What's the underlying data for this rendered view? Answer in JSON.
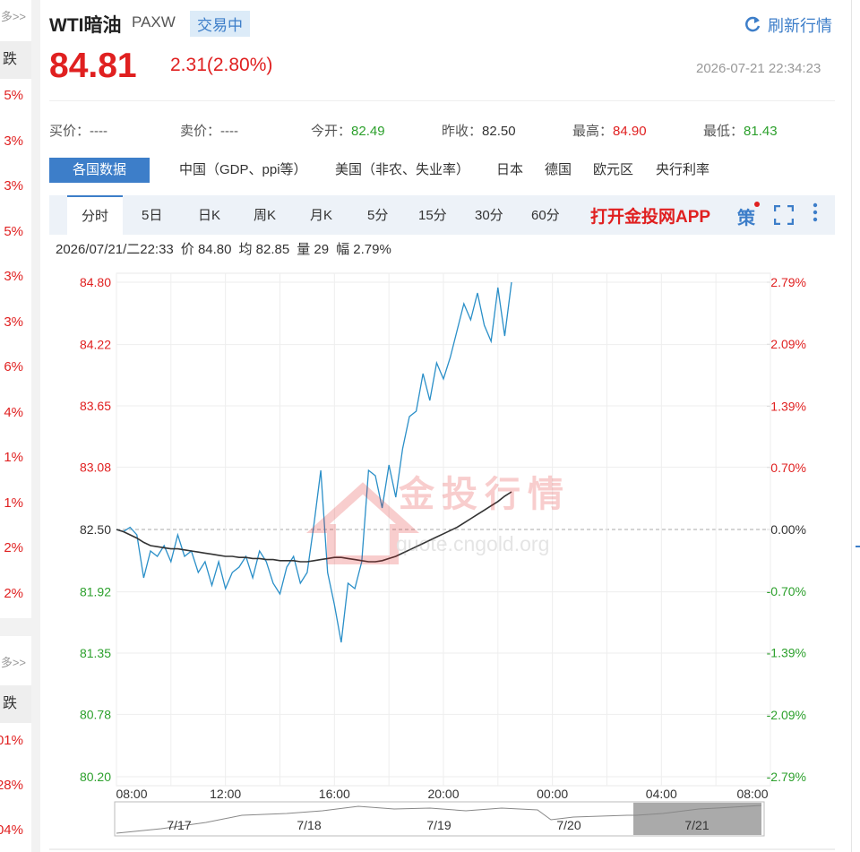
{
  "sidebar": {
    "top": {
      "more": "多>>",
      "header": "跌",
      "items": [
        "5%",
        "3%",
        "3%",
        "5%",
        "3%",
        "3%",
        "6%",
        "4%",
        "1%",
        "1%",
        "2%",
        "2%"
      ]
    },
    "bottom": {
      "more": "多>>",
      "header": "跌",
      "items": [
        "01%",
        "28%",
        "04%"
      ]
    }
  },
  "header": {
    "title": "WTI暗油",
    "code": "PAXW",
    "status": "交易中",
    "refresh": "刷新行情",
    "price": "84.81",
    "change": "2.31(2.80%)",
    "time": "2026-07-21 22:34:23"
  },
  "quotes": [
    {
      "label": "买价：",
      "value": "----",
      "color": "#555555"
    },
    {
      "label": "卖价：",
      "value": "----",
      "color": "#555555"
    },
    {
      "label": "今开：",
      "value": "82.49",
      "color": "#2ca02c"
    },
    {
      "label": "昨收：",
      "value": "82.50",
      "color": "#333333"
    },
    {
      "label": "最高：",
      "value": "84.90",
      "color": "#e02020"
    },
    {
      "label": "最低：",
      "value": "81.43",
      "color": "#2ca02c"
    }
  ],
  "tabs": [
    "各国数据",
    "中国（GDP、ppi等）",
    "美国（非农、失业率）",
    "日本",
    "德国",
    "欧元区",
    "央行利率"
  ],
  "periods": [
    "分时",
    "5日",
    "日K",
    "周K",
    "月K",
    "5分",
    "15分",
    "30分",
    "60分"
  ],
  "promo": "打开金投网APP",
  "strategy": "策",
  "info": [
    "2026/07/21/二22:33",
    "价 84.80",
    "均 82.85",
    "量 29",
    "幅 2.79%"
  ],
  "watermark": {
    "brand": "金投行情",
    "site": "quote.cngold.org"
  },
  "navigator": [
    "7/17",
    "7/18",
    "7/19",
    "7/20",
    "7/21"
  ],
  "chart_data": {
    "type": "line",
    "x": [
      8,
      8.25,
      8.5,
      8.75,
      9,
      9.25,
      9.5,
      9.75,
      10,
      10.25,
      10.5,
      10.75,
      11,
      11.25,
      11.5,
      11.75,
      12,
      12.25,
      12.5,
      12.75,
      13,
      13.25,
      13.5,
      13.75,
      14,
      14.25,
      14.5,
      14.75,
      15,
      15.25,
      15.5,
      15.75,
      16,
      16.25,
      16.5,
      16.75,
      17,
      17.25,
      17.5,
      17.75,
      18,
      18.25,
      18.5,
      18.75,
      19,
      19.25,
      19.5,
      19.75,
      20,
      20.25,
      20.5,
      20.75,
      21,
      21.25,
      21.5,
      21.75,
      22,
      22.25,
      22.5
    ],
    "series": [
      {
        "name": "价",
        "color": "#2a8fc8",
        "values": [
          82.5,
          82.48,
          82.52,
          82.45,
          82.05,
          82.3,
          82.25,
          82.35,
          82.2,
          82.45,
          82.25,
          82.3,
          82.1,
          82.2,
          81.98,
          82.2,
          81.95,
          82.1,
          82.15,
          82.25,
          82.05,
          82.3,
          82.2,
          82.0,
          81.9,
          82.15,
          82.25,
          82.0,
          82.1,
          82.55,
          83.05,
          82.1,
          81.8,
          81.45,
          82.0,
          81.95,
          82.2,
          83.05,
          83.0,
          82.7,
          83.1,
          82.8,
          83.25,
          83.55,
          83.6,
          83.95,
          83.7,
          84.05,
          83.9,
          84.1,
          84.35,
          84.6,
          84.45,
          84.7,
          84.4,
          84.25,
          84.75,
          84.3,
          84.8
        ]
      },
      {
        "name": "均",
        "color": "#333333",
        "values": [
          82.5,
          82.48,
          82.45,
          82.42,
          82.38,
          82.35,
          82.34,
          82.33,
          82.32,
          82.32,
          82.31,
          82.3,
          82.29,
          82.28,
          82.27,
          82.26,
          82.25,
          82.25,
          82.24,
          82.24,
          82.23,
          82.23,
          82.22,
          82.22,
          82.21,
          82.21,
          82.21,
          82.2,
          82.2,
          82.21,
          82.22,
          82.23,
          82.24,
          82.24,
          82.23,
          82.22,
          82.21,
          82.2,
          82.2,
          82.21,
          82.23,
          82.25,
          82.28,
          82.31,
          82.34,
          82.37,
          82.4,
          82.43,
          82.46,
          82.49,
          82.52,
          82.56,
          82.6,
          82.64,
          82.68,
          82.72,
          82.76,
          82.81,
          82.85
        ]
      }
    ],
    "xlim": [
      8,
      32
    ],
    "xticks": [
      {
        "value": 8,
        "label": "08:00"
      },
      {
        "value": 12,
        "label": "12:00"
      },
      {
        "value": 16,
        "label": "16:00"
      },
      {
        "value": 20,
        "label": "20:00"
      },
      {
        "value": 24,
        "label": "00:00"
      },
      {
        "value": 28,
        "label": "04:00"
      },
      {
        "value": 32,
        "label": "08:00"
      }
    ],
    "ylim": [
      80.2,
      84.8
    ],
    "yticks": [
      {
        "value": 84.8,
        "label": "84.80"
      },
      84.22,
      83.65,
      83.08,
      {
        "value": 82.5,
        "label": "82.50"
      },
      81.92,
      81.35,
      80.78,
      {
        "value": 80.2,
        "label": "80.20"
      }
    ],
    "y2lim": [
      -2.79,
      2.79
    ],
    "y2ticks": [
      {
        "value": 2.79,
        "label": "2.79%"
      },
      {
        "value": 2.09,
        "label": "2.09%"
      },
      {
        "value": 1.39,
        "label": "1.39%"
      },
      {
        "value": 0.7,
        "label": "0.70%"
      },
      {
        "value": 0,
        "label": "0.00%"
      },
      {
        "value": -0.7,
        "label": "-0.70%"
      },
      {
        "value": -1.39,
        "label": "-1.39%"
      },
      {
        "value": -2.09,
        "label": "-2.09%"
      },
      {
        "value": -2.79,
        "label": "-2.79%"
      }
    ],
    "up_color": "#e02020",
    "down_color": "#2ca02c",
    "flat_color": "#333333",
    "grid": true
  }
}
